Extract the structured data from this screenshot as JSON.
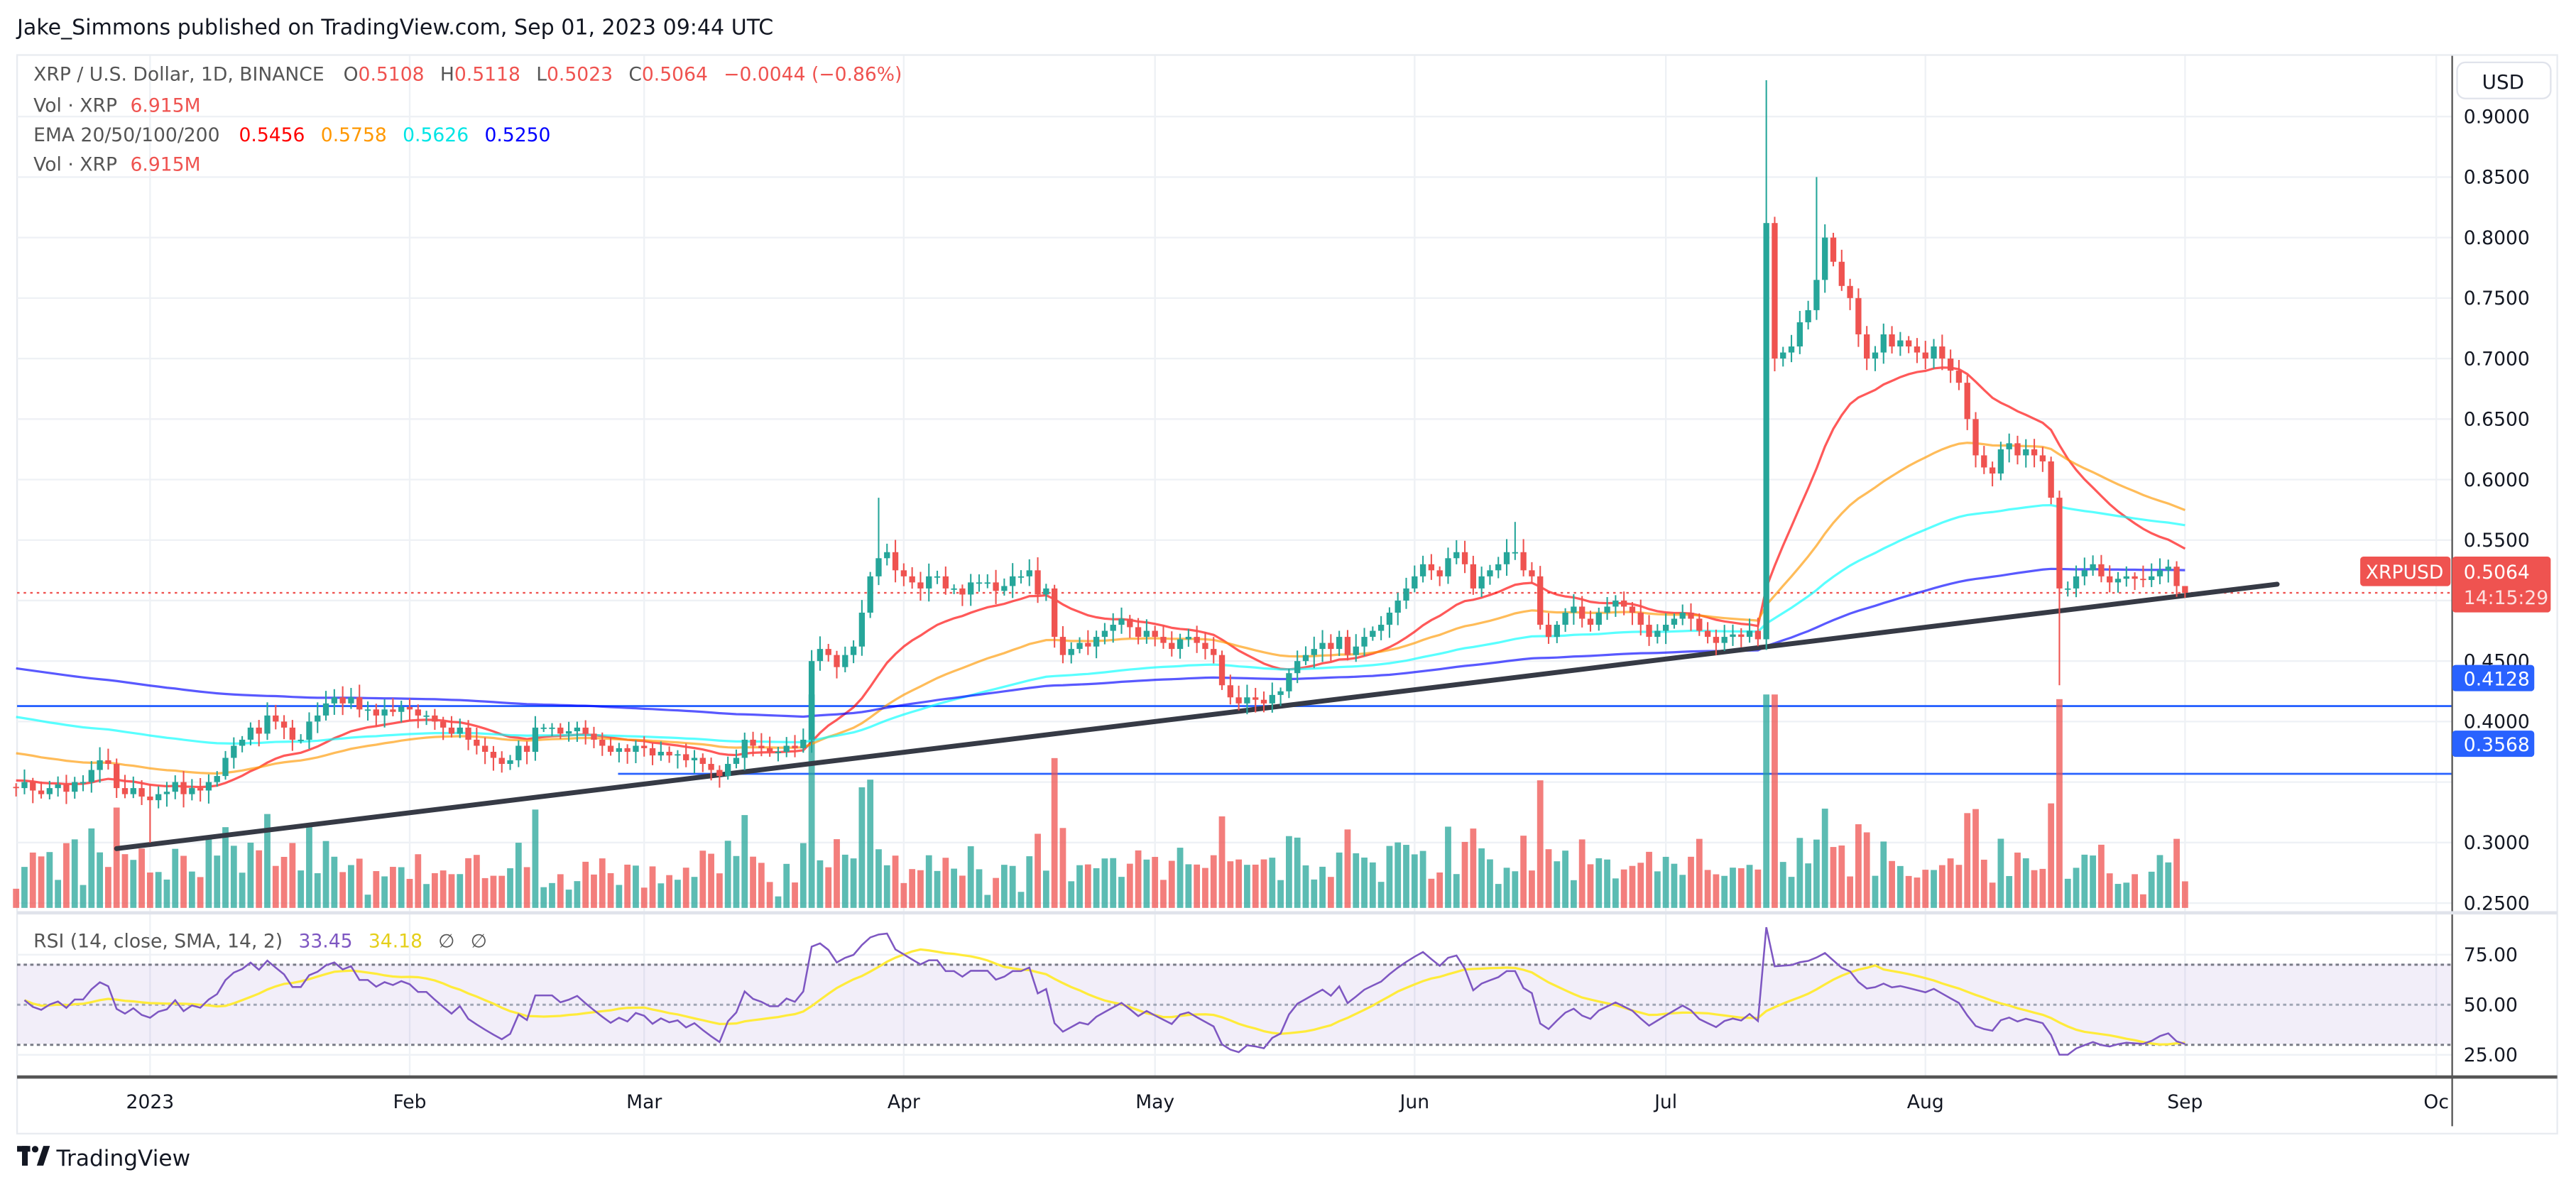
{
  "header": {
    "published": "Jake_Simmons published on TradingView.com, Sep 01, 2023 09:44 UTC"
  },
  "legend": {
    "symbol": "XRP / U.S. Dollar, 1D, BINANCE",
    "o_label": "O",
    "o": "0.5108",
    "h_label": "H",
    "h": "0.5118",
    "l_label": "L",
    "l": "0.5023",
    "c_label": "C",
    "c": "0.5064",
    "change": "−0.0044 (−0.86%)",
    "vol_label": "Vol · XRP",
    "vol": "6.915M",
    "ema_label": "EMA 20/50/100/200",
    "ema20": "0.5456",
    "ema50": "0.5758",
    "ema100": "0.5626",
    "ema200": "0.5250",
    "vol2_label": "Vol · XRP",
    "vol2": "6.915M"
  },
  "rsi_legend": {
    "label": "RSI (14, close, SMA, 14, 2)",
    "rsi": "33.45",
    "sma": "34.18",
    "empty1": "∅",
    "empty2": "∅"
  },
  "price_axis": {
    "currency_button": "USD",
    "ticks": [
      "0.9000",
      "0.8500",
      "0.8000",
      "0.7500",
      "0.7000",
      "0.6500",
      "0.6000",
      "0.5500",
      "0.4500",
      "0.4000",
      "0.3000",
      "0.2500"
    ],
    "symbol_tag": "XRPUSD",
    "last_price": "0.5064",
    "countdown": "14:15:29",
    "level1": "0.4128",
    "level2": "0.3568"
  },
  "rsi_axis": {
    "ticks": [
      "75.00",
      "50.00",
      "25.00"
    ]
  },
  "time_axis": {
    "ticks": [
      "2023",
      "Feb",
      "Mar",
      "Apr",
      "May",
      "Jun",
      "Jul",
      "Aug",
      "Sep",
      "Oc"
    ]
  },
  "footer": {
    "brand": "TradingView"
  },
  "colors": {
    "up": "#26a69a",
    "down": "#ef5350",
    "ema20": "#ff0000",
    "ema50": "#ff9800",
    "ema100": "#00ffff",
    "ema200": "#0000ff",
    "rsi": "#7e57c2",
    "rsi_sma": "#ffeb3b",
    "level": "#2962ff",
    "trendline": "#363a45"
  },
  "icons": {
    "logo": "tradingview-logo"
  },
  "chart_data": {
    "type": "candlestick",
    "symbol": "XRPUSD",
    "interval": "1D",
    "start_date": "2022-12-16",
    "end_date": "2023-09-01",
    "ylim": [
      0.2,
      0.93
    ],
    "scale": "linear",
    "grid": true,
    "closes": [
      0.345,
      0.35,
      0.343,
      0.34,
      0.345,
      0.348,
      0.342,
      0.35,
      0.35,
      0.36,
      0.368,
      0.365,
      0.345,
      0.34,
      0.345,
      0.338,
      0.335,
      0.34,
      0.342,
      0.35,
      0.34,
      0.345,
      0.343,
      0.35,
      0.355,
      0.37,
      0.38,
      0.385,
      0.395,
      0.39,
      0.405,
      0.4,
      0.395,
      0.385,
      0.385,
      0.4,
      0.405,
      0.415,
      0.42,
      0.415,
      0.42,
      0.41,
      0.41,
      0.405,
      0.41,
      0.408,
      0.412,
      0.41,
      0.405,
      0.405,
      0.4,
      0.395,
      0.39,
      0.395,
      0.385,
      0.38,
      0.375,
      0.37,
      0.365,
      0.368,
      0.38,
      0.375,
      0.395,
      0.395,
      0.395,
      0.39,
      0.392,
      0.395,
      0.39,
      0.385,
      0.38,
      0.375,
      0.378,
      0.375,
      0.38,
      0.378,
      0.372,
      0.375,
      0.372,
      0.373,
      0.368,
      0.37,
      0.365,
      0.36,
      0.355,
      0.365,
      0.37,
      0.385,
      0.38,
      0.378,
      0.375,
      0.375,
      0.38,
      0.378,
      0.385,
      0.45,
      0.46,
      0.455,
      0.445,
      0.455,
      0.462,
      0.49,
      0.52,
      0.535,
      0.54,
      0.525,
      0.52,
      0.515,
      0.51,
      0.52,
      0.52,
      0.51,
      0.51,
      0.505,
      0.515,
      0.515,
      0.515,
      0.508,
      0.512,
      0.52,
      0.52,
      0.525,
      0.505,
      0.51,
      0.47,
      0.455,
      0.46,
      0.465,
      0.462,
      0.47,
      0.475,
      0.48,
      0.485,
      0.478,
      0.47,
      0.475,
      0.47,
      0.465,
      0.46,
      0.468,
      0.47,
      0.465,
      0.46,
      0.455,
      0.43,
      0.42,
      0.415,
      0.42,
      0.418,
      0.415,
      0.422,
      0.425,
      0.44,
      0.45,
      0.455,
      0.46,
      0.465,
      0.46,
      0.47,
      0.455,
      0.462,
      0.47,
      0.475,
      0.48,
      0.49,
      0.5,
      0.51,
      0.52,
      0.53,
      0.525,
      0.52,
      0.535,
      0.54,
      0.53,
      0.51,
      0.52,
      0.525,
      0.53,
      0.54,
      0.54,
      0.525,
      0.52,
      0.48,
      0.47,
      0.48,
      0.49,
      0.495,
      0.485,
      0.48,
      0.49,
      0.495,
      0.5,
      0.495,
      0.49,
      0.48,
      0.47,
      0.475,
      0.48,
      0.485,
      0.49,
      0.485,
      0.475,
      0.47,
      0.465,
      0.47,
      0.472,
      0.47,
      0.475,
      0.468,
      0.812,
      0.7,
      0.705,
      0.71,
      0.73,
      0.74,
      0.765,
      0.8,
      0.78,
      0.76,
      0.75,
      0.72,
      0.7,
      0.705,
      0.72,
      0.71,
      0.715,
      0.71,
      0.705,
      0.7,
      0.71,
      0.7,
      0.69,
      0.68,
      0.65,
      0.62,
      0.61,
      0.605,
      0.625,
      0.63,
      0.62,
      0.625,
      0.62,
      0.615,
      0.585,
      0.51,
      0.51,
      0.52,
      0.525,
      0.53,
      0.52,
      0.515,
      0.518,
      0.52,
      0.518,
      0.517,
      0.52,
      0.525,
      0.528,
      0.512,
      0.5064
    ],
    "notable_wicks": [
      {
        "date": "2023-01-01",
        "low": 0.3
      },
      {
        "date": "2023-03-29",
        "high": 0.585
      },
      {
        "date": "2023-06-13",
        "high": 0.565
      },
      {
        "date": "2023-07-13",
        "high": 0.93
      },
      {
        "date": "2023-07-19",
        "high": 0.85
      },
      {
        "date": "2023-08-17",
        "low": 0.43
      }
    ],
    "indicators": [
      "EMA 20",
      "EMA 50",
      "EMA 100",
      "EMA 200",
      "Volume",
      "RSI 14 with SMA 14"
    ],
    "horizontal_levels": [
      0.4128,
      0.3568
    ],
    "trendline": {
      "from": {
        "date": "2022-12-28",
        "price": 0.295
      },
      "to": {
        "date": "2023-09-12",
        "price": 0.5135
      }
    },
    "rsi_bands": [
      70,
      50,
      30
    ]
  }
}
